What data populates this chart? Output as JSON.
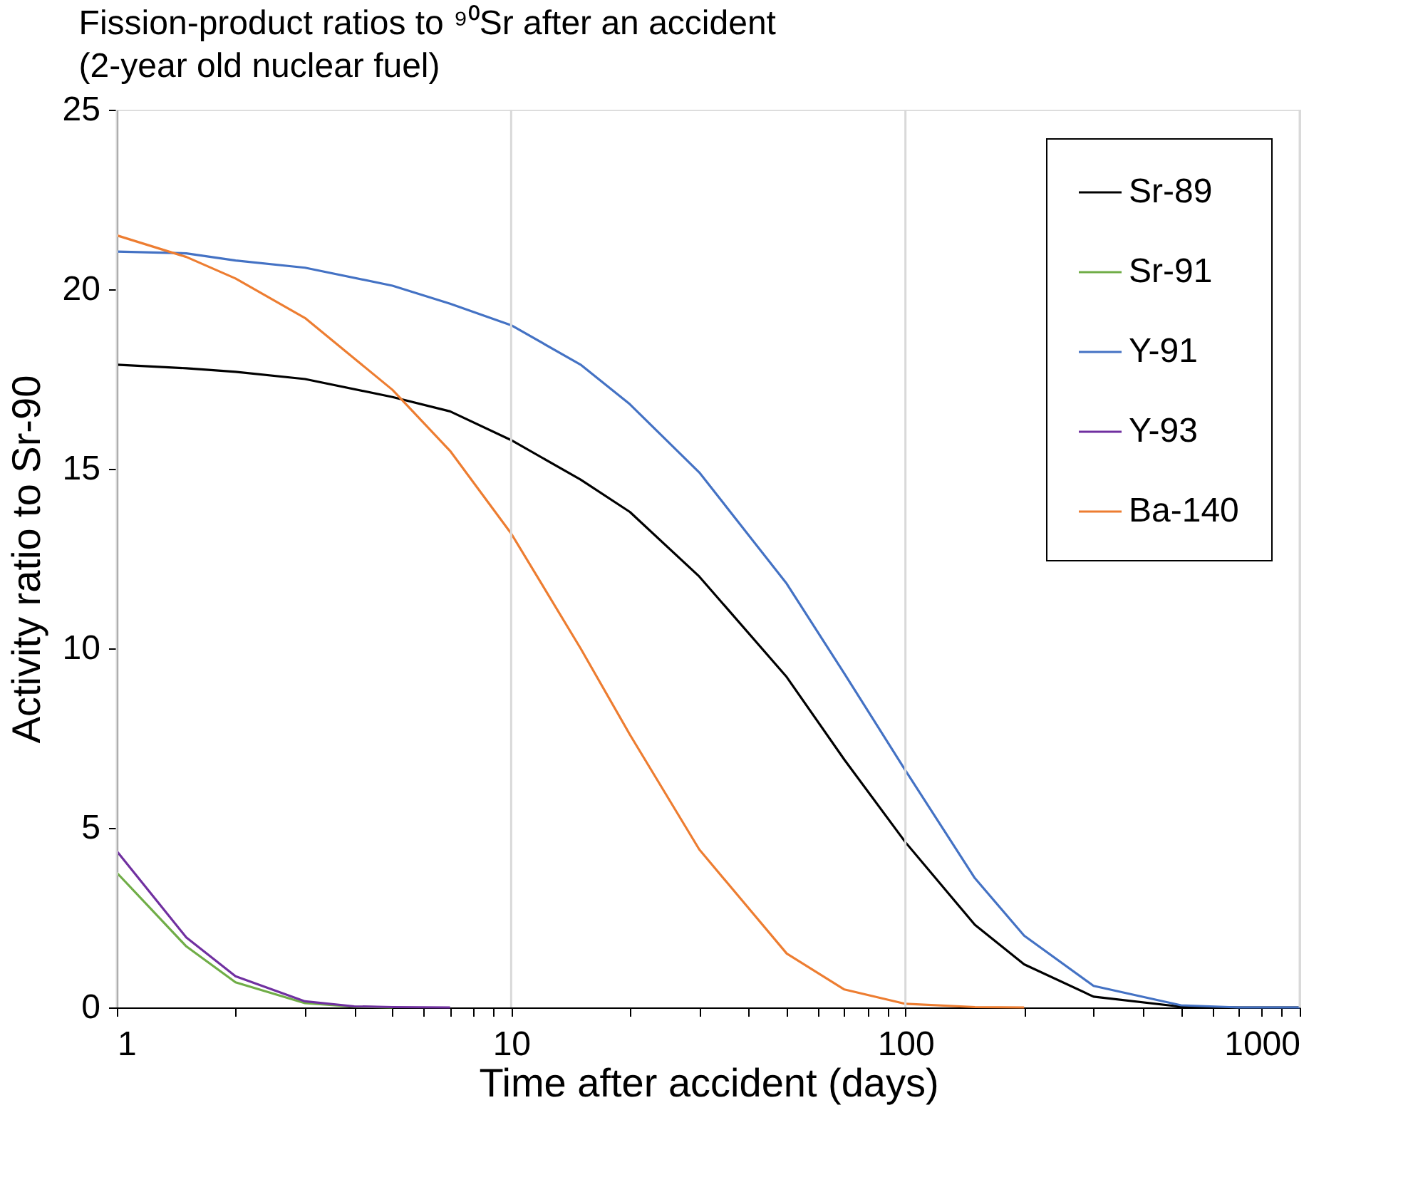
{
  "chart_data": {
    "type": "line",
    "title": "Fission-product ratios to ⁹⁰Sr after an accident\n(2-year old nuclear fuel)",
    "xlabel": "Time after accident (days)",
    "ylabel": "Activity ratio to Sr-90",
    "log": "x",
    "grid": "x",
    "legend": "top right",
    "marker": "none",
    "line_style": "solid",
    "xlim": [
      1,
      1000
    ],
    "ylim": [
      0,
      25
    ],
    "xticks": [
      1,
      {
        "value": 2,
        "label": null
      },
      {
        "value": 3,
        "label": null
      },
      {
        "value": 4,
        "label": null
      },
      {
        "value": 5,
        "label": null
      },
      {
        "value": 6,
        "label": null
      },
      {
        "value": 7,
        "label": null
      },
      {
        "value": 8,
        "label": null
      },
      {
        "value": 9,
        "label": null
      },
      10,
      {
        "value": 20,
        "label": null
      },
      {
        "value": 30,
        "label": null
      },
      {
        "value": 40,
        "label": null
      },
      {
        "value": 50,
        "label": null
      },
      {
        "value": 60,
        "label": null
      },
      {
        "value": 70,
        "label": null
      },
      {
        "value": 80,
        "label": null
      },
      {
        "value": 90,
        "label": null
      },
      100,
      {
        "value": 200,
        "label": null
      },
      {
        "value": 300,
        "label": null
      },
      {
        "value": 400,
        "label": null
      },
      {
        "value": 500,
        "label": null
      },
      {
        "value": 600,
        "label": null
      },
      {
        "value": 700,
        "label": null
      },
      {
        "value": 800,
        "label": null
      },
      {
        "value": 900,
        "label": null
      },
      1000
    ],
    "yticks": [
      0,
      5,
      10,
      15,
      20,
      25
    ],
    "series": [
      {
        "name": "Sr-89",
        "color": "#000000",
        "x": [
          1,
          1.5,
          2,
          3,
          5,
          7,
          10,
          15,
          20,
          30,
          50,
          70,
          100,
          150,
          200,
          300,
          500,
          700,
          1000
        ],
        "values": [
          17.9,
          17.8,
          17.7,
          17.5,
          17.0,
          16.6,
          15.8,
          14.7,
          13.8,
          12.0,
          9.2,
          6.9,
          4.6,
          2.3,
          1.2,
          0.3,
          0.02,
          0,
          0
        ]
      },
      {
        "name": "Sr-91",
        "color": "#70ad47",
        "x": [
          1,
          1.5,
          2,
          3,
          4,
          5
        ],
        "values": [
          3.75,
          1.7,
          0.7,
          0.12,
          0.02,
          0
        ]
      },
      {
        "name": "Y-91",
        "color": "#4472c4",
        "x": [
          1,
          1.5,
          2,
          3,
          5,
          7,
          10,
          15,
          20,
          30,
          50,
          70,
          100,
          150,
          200,
          300,
          500,
          700,
          1000
        ],
        "values": [
          21.05,
          21.0,
          20.8,
          20.6,
          20.1,
          19.6,
          19.0,
          17.9,
          16.8,
          14.9,
          11.8,
          9.3,
          6.6,
          3.6,
          2.0,
          0.6,
          0.06,
          0,
          0
        ]
      },
      {
        "name": "Y-93",
        "color": "#7030a0",
        "x": [
          1,
          1.5,
          2,
          3,
          4,
          5,
          7
        ],
        "values": [
          4.35,
          1.95,
          0.87,
          0.17,
          0.03,
          0.01,
          0
        ]
      },
      {
        "name": "Ba-140",
        "color": "#ed7d31",
        "x": [
          1,
          1.5,
          2,
          3,
          5,
          7,
          10,
          15,
          20,
          30,
          50,
          70,
          100,
          150,
          200
        ],
        "values": [
          21.5,
          20.9,
          20.3,
          19.2,
          17.2,
          15.5,
          13.2,
          10.0,
          7.6,
          4.4,
          1.5,
          0.5,
          0.1,
          0.01,
          0
        ]
      }
    ]
  }
}
